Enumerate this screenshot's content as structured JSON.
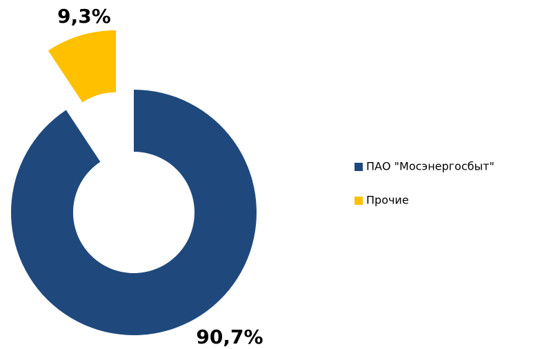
{
  "chart_data": {
    "type": "donut",
    "categories": [
      "ПАО \"Мосэнергосбыт\"",
      "Прочие"
    ],
    "values": [
      90.7,
      9.3
    ],
    "value_labels": [
      "90,7%",
      "9,3%"
    ],
    "colors": [
      "#1f497d",
      "#ffc000"
    ],
    "legend": "right"
  }
}
